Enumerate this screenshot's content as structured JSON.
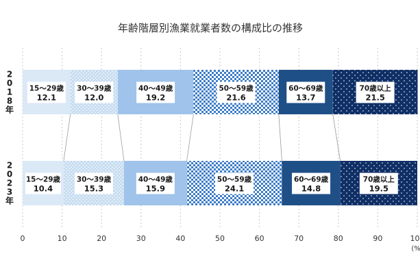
{
  "chart_data": {
    "type": "bar",
    "orientation": "horizontal",
    "stacked": true,
    "title": "年齢階層別漁業就業者数の構成比の推移",
    "categories": [
      "2018年",
      "2023年"
    ],
    "category_glyphs": [
      [
        "2",
        "0",
        "1",
        "8",
        "年"
      ],
      [
        "2",
        "0",
        "2",
        "3",
        "年"
      ]
    ],
    "series": [
      {
        "name": "15〜29歳",
        "values": [
          12.1,
          10.4
        ],
        "color": "#dbe9f7",
        "pattern": "solid",
        "label_color": "#1a1a1a"
      },
      {
        "name": "30〜39歳",
        "values": [
          12.0,
          15.3
        ],
        "color": "#c6dcf1",
        "pattern": "dots",
        "label_color": "#1a1a1a"
      },
      {
        "name": "40〜49歳",
        "values": [
          19.2,
          15.9
        ],
        "color": "#9fc3ea",
        "pattern": "solid",
        "label_color": "#1a1a1a"
      },
      {
        "name": "50〜59歳",
        "values": [
          21.6,
          24.1
        ],
        "color": "#3b7bc8",
        "pattern": "checker",
        "label_color": "#1a1a1a"
      },
      {
        "name": "60〜69歳",
        "values": [
          13.7,
          14.8
        ],
        "color": "#1f4f87",
        "pattern": "solid",
        "label_color": "#1a1a1a"
      },
      {
        "name": "70歳以上",
        "values": [
          21.5,
          19.5
        ],
        "color": "#0f2f66",
        "pattern": "dots",
        "label_color": "#1a1a1a"
      }
    ],
    "xlim": [
      0,
      100
    ],
    "xticks": [
      "0",
      "10",
      "20",
      "30",
      "40",
      "50",
      "60",
      "70",
      "80",
      "90",
      "100"
    ],
    "xunit": "(%)",
    "grid": "vertical-dashed",
    "connectors": true
  }
}
